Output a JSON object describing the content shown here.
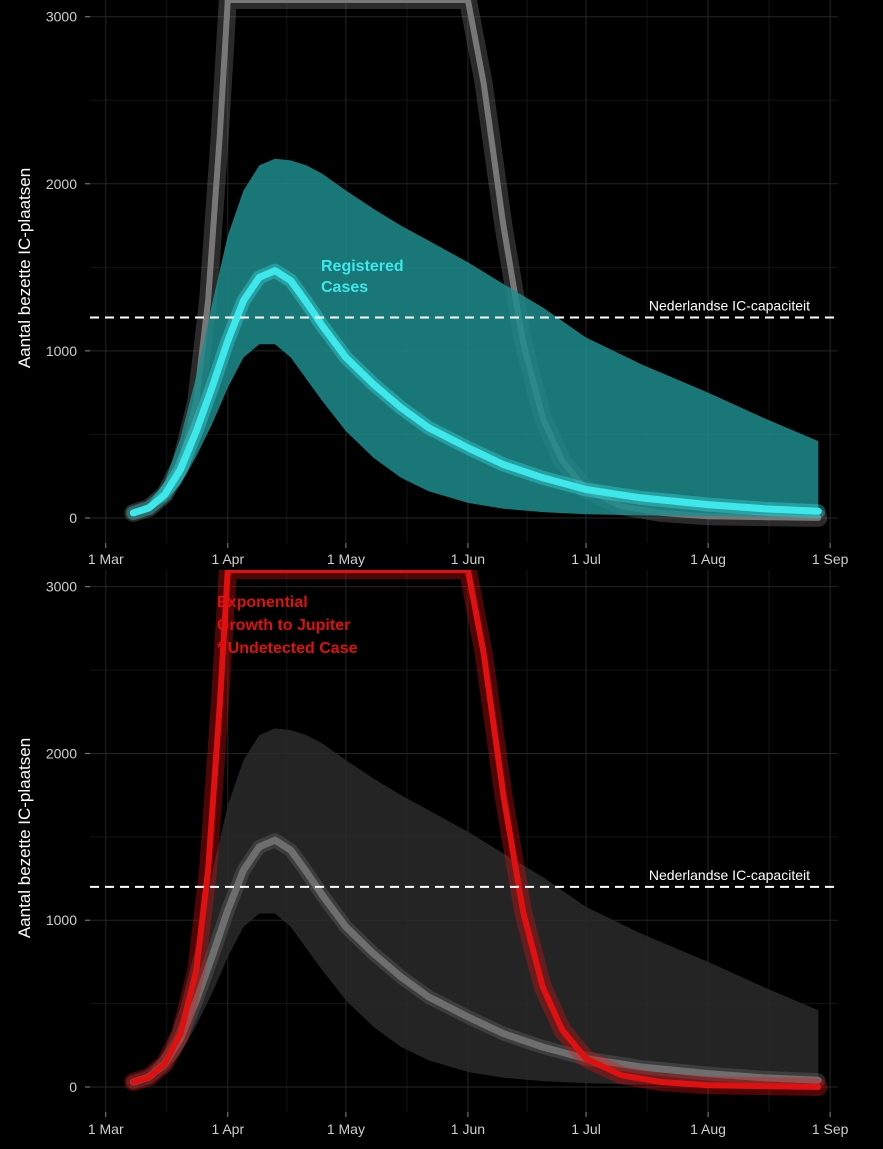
{
  "chart_data": [
    {
      "type": "line",
      "ylabel": "Aantal bezette IC-plaatsen",
      "xticks": [
        "1 Mar",
        "1 Apr",
        "1 May",
        "1 Jun",
        "1 Jul",
        "1 Aug",
        "1 Sep"
      ],
      "yticks": [
        0,
        1000,
        2000,
        3000
      ],
      "ylim": [
        -150,
        3100
      ],
      "grid": true,
      "reference_line": {
        "label": "Nederlandse IC-capaciteit",
        "value": 1200
      },
      "series": [
        {
          "name": "Registered Cases",
          "color": "#3ee8ea",
          "band_color": "#1d8c8c",
          "x": [
            "2020-03-08",
            "2020-03-12",
            "2020-03-16",
            "2020-03-20",
            "2020-03-24",
            "2020-03-28",
            "2020-04-01",
            "2020-04-05",
            "2020-04-09",
            "2020-04-13",
            "2020-04-17",
            "2020-04-21",
            "2020-04-25",
            "2020-05-01",
            "2020-05-08",
            "2020-05-15",
            "2020-05-22",
            "2020-06-01",
            "2020-06-10",
            "2020-06-20",
            "2020-07-01",
            "2020-07-15",
            "2020-08-01",
            "2020-08-15",
            "2020-08-29"
          ],
          "values": [
            30,
            60,
            140,
            290,
            520,
            780,
            1060,
            1300,
            1440,
            1480,
            1420,
            1290,
            1150,
            960,
            800,
            660,
            540,
            420,
            320,
            240,
            170,
            120,
            80,
            55,
            40
          ],
          "lower": [
            20,
            45,
            100,
            200,
            370,
            560,
            780,
            960,
            1040,
            1040,
            960,
            830,
            700,
            520,
            360,
            240,
            160,
            90,
            55,
            35,
            22,
            15,
            10,
            8,
            6
          ],
          "upper": [
            40,
            90,
            220,
            480,
            850,
            1280,
            1690,
            1960,
            2110,
            2150,
            2140,
            2110,
            2060,
            1960,
            1850,
            1750,
            1660,
            1530,
            1400,
            1260,
            1080,
            920,
            750,
            600,
            460
          ]
        },
        {
          "color": "#777777",
          "x": [
            "2020-03-08",
            "2020-03-12",
            "2020-03-16",
            "2020-03-20",
            "2020-03-24",
            "2020-03-27",
            "2020-03-30",
            "2020-04-01",
            "2020-06-01",
            "2020-06-05",
            "2020-06-10",
            "2020-06-15",
            "2020-06-20",
            "2020-06-25",
            "2020-07-01",
            "2020-07-10",
            "2020-07-20",
            "2020-08-01",
            "2020-08-29"
          ],
          "values": [
            30,
            60,
            140,
            320,
            700,
            1300,
            2300,
            3100,
            3100,
            2600,
            1750,
            1050,
            600,
            340,
            170,
            70,
            30,
            10,
            0
          ]
        }
      ]
    },
    {
      "type": "line",
      "ylabel": "Aantal bezette IC-plaatsen",
      "xticks": [
        "1 Mar",
        "1 Apr",
        "1 May",
        "1 Jun",
        "1 Jul",
        "1 Aug",
        "1 Sep"
      ],
      "yticks": [
        0,
        1000,
        2000,
        3000
      ],
      "ylim": [
        -150,
        3100
      ],
      "grid": true,
      "reference_line": {
        "label": "Nederlandse IC-capaciteit",
        "value": 1200
      },
      "annotation": [
        "Exponential",
        "Growth to Jupiter",
        "* Undetected Case"
      ],
      "series": [
        {
          "color": "#e01010",
          "x": [
            "2020-03-08",
            "2020-03-12",
            "2020-03-16",
            "2020-03-20",
            "2020-03-24",
            "2020-03-27",
            "2020-03-30",
            "2020-04-01",
            "2020-06-01",
            "2020-06-05",
            "2020-06-10",
            "2020-06-15",
            "2020-06-20",
            "2020-06-25",
            "2020-07-01",
            "2020-07-10",
            "2020-07-20",
            "2020-08-01",
            "2020-08-29"
          ],
          "values": [
            30,
            60,
            140,
            320,
            700,
            1300,
            2300,
            3100,
            3100,
            2600,
            1750,
            1050,
            600,
            340,
            170,
            70,
            30,
            10,
            0
          ]
        },
        {
          "color": "#6e6e6e",
          "band_color": "#2a2a2a",
          "x": [
            "2020-03-08",
            "2020-03-12",
            "2020-03-16",
            "2020-03-20",
            "2020-03-24",
            "2020-03-28",
            "2020-04-01",
            "2020-04-05",
            "2020-04-09",
            "2020-04-13",
            "2020-04-17",
            "2020-04-21",
            "2020-04-25",
            "2020-05-01",
            "2020-05-08",
            "2020-05-15",
            "2020-05-22",
            "2020-06-01",
            "2020-06-10",
            "2020-06-20",
            "2020-07-01",
            "2020-07-15",
            "2020-08-01",
            "2020-08-15",
            "2020-08-29"
          ],
          "values": [
            30,
            60,
            140,
            290,
            520,
            780,
            1060,
            1300,
            1440,
            1480,
            1420,
            1290,
            1150,
            960,
            800,
            660,
            540,
            420,
            320,
            240,
            170,
            120,
            80,
            55,
            40
          ],
          "lower": [
            20,
            45,
            100,
            200,
            370,
            560,
            780,
            960,
            1040,
            1040,
            960,
            830,
            700,
            520,
            360,
            240,
            160,
            90,
            55,
            35,
            22,
            15,
            10,
            8,
            6
          ],
          "upper": [
            40,
            90,
            220,
            480,
            850,
            1280,
            1690,
            1960,
            2110,
            2150,
            2140,
            2110,
            2060,
            1960,
            1850,
            1750,
            1660,
            1530,
            1400,
            1260,
            1080,
            920,
            750,
            600,
            460
          ]
        }
      ]
    }
  ]
}
